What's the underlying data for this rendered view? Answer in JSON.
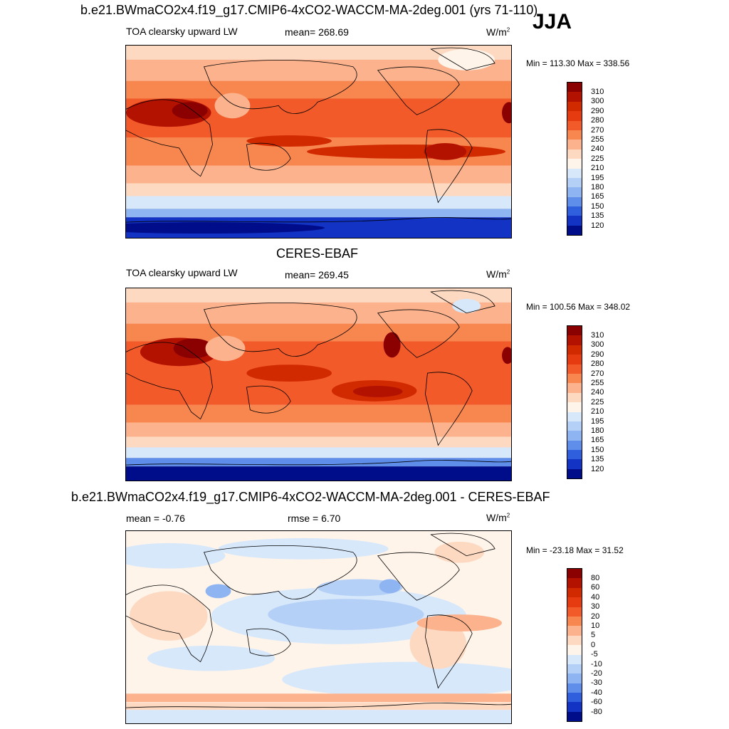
{
  "figure": {
    "season": "JJA",
    "units_base": "W/m",
    "units_exp": "2",
    "panels": [
      {
        "title": "b.e21.BWmaCO2x4.f19_g17.CMIP6-4xCO2-WACCM-MA-2deg.001 (yrs 71-110)",
        "left_label": "TOA clearsky upward LW",
        "center_label": "mean= 268.69",
        "minmax": "Min = 113.30 Max = 338.56"
      },
      {
        "title": "CERES-EBAF",
        "left_label": "TOA clearsky upward LW",
        "center_label": "mean= 269.45",
        "minmax": "Min = 100.56 Max = 348.02"
      },
      {
        "title": "b.e21.BWmaCO2x4.f19_g17.CMIP6-4xCO2-WACCM-MA-2deg.001 - CERES-EBAF",
        "left_label": "mean =  -0.76",
        "center_label": "rmse =   6.70",
        "minmax": "Min = -23.18 Max =  31.52"
      }
    ],
    "colorbars": {
      "absolute": {
        "labels": [
          "310",
          "300",
          "290",
          "280",
          "270",
          "255",
          "240",
          "225",
          "210",
          "195",
          "180",
          "165",
          "150",
          "135",
          "120"
        ],
        "colors": [
          "#8b0000",
          "#b31200",
          "#d12a00",
          "#e63b10",
          "#f25a2a",
          "#f7864f",
          "#fbb28d",
          "#fdd9c2",
          "#fff4ea",
          "#d8e8fb",
          "#b5d0f7",
          "#8eb4f2",
          "#5f8eea",
          "#2f5fdc",
          "#1233c4",
          "#000d8a"
        ]
      },
      "difference": {
        "labels": [
          "80",
          "60",
          "40",
          "30",
          "20",
          "10",
          "5",
          "0",
          "-5",
          "-10",
          "-20",
          "-30",
          "-40",
          "-60",
          "-80"
        ],
        "colors": [
          "#8b0000",
          "#b31200",
          "#d12a00",
          "#e63b10",
          "#f25a2a",
          "#f7864f",
          "#fbb28d",
          "#fdd9c2",
          "#fff4ea",
          "#d8e8fb",
          "#b5d0f7",
          "#8eb4f2",
          "#5f8eea",
          "#2f5fdc",
          "#1233c4",
          "#000d8a"
        ]
      }
    }
  }
}
